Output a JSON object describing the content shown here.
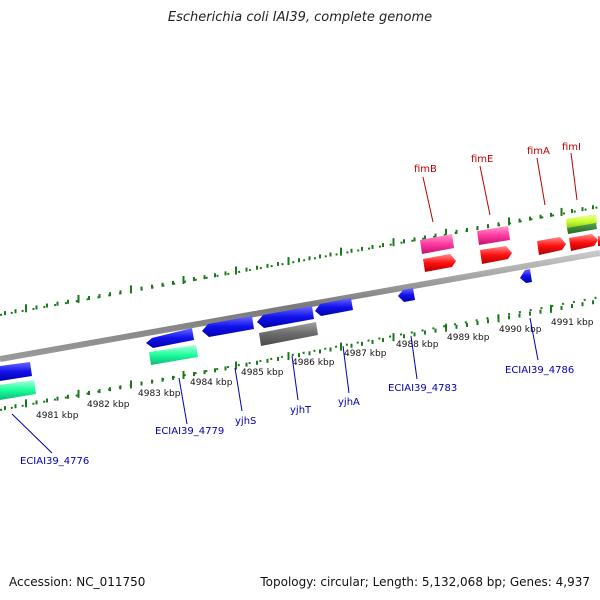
{
  "header": {
    "title": "Escherichia coli IAI39, complete genome"
  },
  "footer": {
    "accession": "Accession: NC_011750",
    "summary": "Topology: circular; Length: 5,132,068 bp; Genes: 4,937"
  },
  "ticks": [
    "4981 kbp",
    "4982 kbp",
    "4983 kbp",
    "4984 kbp",
    "4985 kbp",
    "4986 kbp",
    "4987 kbp",
    "4988 kbp",
    "4989 kbp",
    "4990 kbp",
    "4991 kbp"
  ],
  "genes_top": [
    {
      "label": "fimB",
      "color": "#ff3aa0"
    },
    {
      "label": "fimE",
      "color": "#ff3aa0"
    },
    {
      "label": "fimA",
      "color": "#ff1010"
    },
    {
      "label": "fimI",
      "color": "#ff1010"
    }
  ],
  "genes_bottom": [
    {
      "label": "ECIAI39_4776",
      "color": "#1aff9a"
    },
    {
      "label": "ECIAI39_4779",
      "color": "#1aff9a"
    },
    {
      "label": "yjhS",
      "color": "#1111ee"
    },
    {
      "label": "yjhT",
      "color": "#1111ee"
    },
    {
      "label": "yjhA",
      "color": "#1111ee"
    },
    {
      "label": "ECIAI39_4783",
      "color": "#1111ee"
    },
    {
      "label": "ECIAI39_4786",
      "color": "#1111ee"
    }
  ]
}
